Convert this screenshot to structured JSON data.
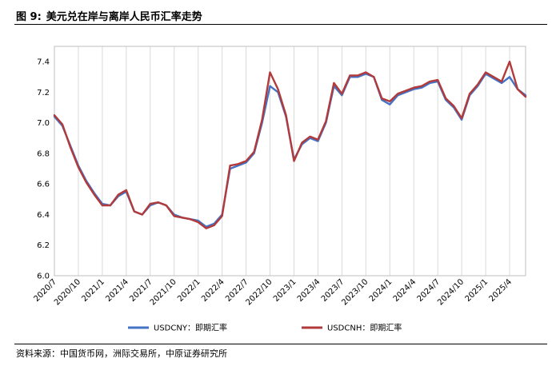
{
  "header": {
    "label": "图 9:",
    "title": "美元兑在岸与离岸人民币汇率走势"
  },
  "footer": {
    "source": "资料来源：中国货币网，洲际交易所，中原证券研究所"
  },
  "colors": {
    "usdcny": "#4472c4",
    "usdcnh": "#b23a3a",
    "grid": "#d9d9d9",
    "frame": "#bfbfbf"
  },
  "chart_data": {
    "type": "line",
    "title": "",
    "xlabel": "",
    "ylabel": "",
    "ylim": [
      6.0,
      7.5
    ],
    "yticks": [
      "6.0",
      "6.2",
      "6.4",
      "6.6",
      "6.8",
      "7.0",
      "7.2",
      "7.4"
    ],
    "xlim": [
      "2020-07",
      "2025-06"
    ],
    "xticks": [
      "2020/7",
      "2020/10",
      "2021/1",
      "2021/4",
      "2021/7",
      "2021/10",
      "2022/1",
      "2022/4",
      "2022/7",
      "2022/10",
      "2023/1",
      "2023/4",
      "2023/7",
      "2023/10",
      "2024/1",
      "2024/4",
      "2024/7",
      "2024/10",
      "2025/1",
      "2025/4"
    ],
    "grid": "vertical",
    "legend": "bottom",
    "x": [
      "2020-07",
      "2020-08",
      "2020-09",
      "2020-10",
      "2020-11",
      "2020-12",
      "2021-01",
      "2021-02",
      "2021-03",
      "2021-04",
      "2021-05",
      "2021-06",
      "2021-07",
      "2021-08",
      "2021-09",
      "2021-10",
      "2021-11",
      "2021-12",
      "2022-01",
      "2022-02",
      "2022-03",
      "2022-04",
      "2022-05",
      "2022-06",
      "2022-07",
      "2022-08",
      "2022-09",
      "2022-10",
      "2022-11",
      "2022-12",
      "2023-01",
      "2023-02",
      "2023-03",
      "2023-04",
      "2023-05",
      "2023-06",
      "2023-07",
      "2023-08",
      "2023-09",
      "2023-10",
      "2023-11",
      "2023-12",
      "2024-01",
      "2024-02",
      "2024-03",
      "2024-04",
      "2024-05",
      "2024-06",
      "2024-07",
      "2024-08",
      "2024-09",
      "2024-10",
      "2024-11",
      "2024-12",
      "2025-01",
      "2025-02",
      "2025-03",
      "2025-04",
      "2025-05",
      "2025-06"
    ],
    "series": [
      {
        "name": "USDCNY：即期汇率",
        "values": [
          7.04,
          6.98,
          6.85,
          6.72,
          6.62,
          6.54,
          6.47,
          6.46,
          6.52,
          6.55,
          6.42,
          6.4,
          6.46,
          6.48,
          6.46,
          6.4,
          6.38,
          6.37,
          6.36,
          6.32,
          6.34,
          6.4,
          6.7,
          6.72,
          6.74,
          6.8,
          7.0,
          7.24,
          7.2,
          7.04,
          6.76,
          6.86,
          6.9,
          6.88,
          7.0,
          7.24,
          7.18,
          7.3,
          7.3,
          7.32,
          7.3,
          7.15,
          7.12,
          7.18,
          7.2,
          7.22,
          7.23,
          7.26,
          7.27,
          7.15,
          7.1,
          7.02,
          7.18,
          7.24,
          7.32,
          7.29,
          7.26,
          7.3,
          7.22,
          7.18
        ]
      },
      {
        "name": "USDCNH：即期汇率",
        "values": [
          7.05,
          6.99,
          6.84,
          6.71,
          6.61,
          6.53,
          6.46,
          6.46,
          6.53,
          6.56,
          6.42,
          6.4,
          6.47,
          6.48,
          6.46,
          6.39,
          6.38,
          6.37,
          6.35,
          6.31,
          6.33,
          6.39,
          6.72,
          6.73,
          6.75,
          6.81,
          7.02,
          7.33,
          7.22,
          7.05,
          6.75,
          6.87,
          6.91,
          6.89,
          7.01,
          7.26,
          7.19,
          7.31,
          7.31,
          7.33,
          7.3,
          7.16,
          7.14,
          7.19,
          7.21,
          7.23,
          7.24,
          7.27,
          7.28,
          7.16,
          7.11,
          7.03,
          7.19,
          7.25,
          7.33,
          7.3,
          7.27,
          7.4,
          7.22,
          7.17
        ]
      }
    ]
  }
}
